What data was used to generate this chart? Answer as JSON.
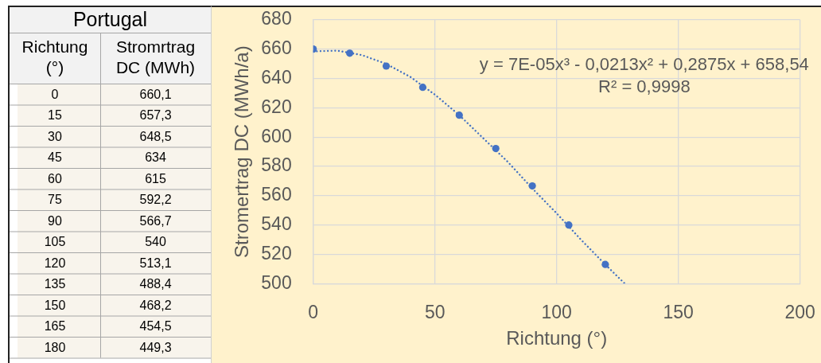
{
  "chart_data": [
    {
      "type": "heatmap",
      "title": "Portugal",
      "ylabel": "Richtung (°)",
      "categories": [
        "Stromrtrag DC (MWh)"
      ],
      "y_categories": [
        "0",
        "15",
        "30",
        "45",
        "60",
        "75",
        "90",
        "105",
        "120",
        "135",
        "150",
        "165",
        "180"
      ],
      "cells": [
        [
          660.1
        ],
        [
          657.3
        ],
        [
          648.5
        ],
        [
          634
        ],
        [
          615
        ],
        [
          592.2
        ],
        [
          566.7
        ],
        [
          540
        ],
        [
          513.1
        ],
        [
          488.4
        ],
        [
          468.2
        ],
        [
          454.5
        ],
        [
          449.3
        ]
      ],
      "cell_labels": [
        [
          "660,1"
        ],
        [
          "657,3"
        ],
        [
          "648,5"
        ],
        [
          "634"
        ],
        [
          "615"
        ],
        [
          "592,2"
        ],
        [
          "566,7"
        ],
        [
          "540"
        ],
        [
          "513,1"
        ],
        [
          "488,4"
        ],
        [
          "468,2"
        ],
        [
          "454,5"
        ],
        [
          "449,3"
        ]
      ]
    },
    {
      "type": "scatter",
      "xlabel": "Richtung (°)",
      "ylabel": "Stromertrag DC (MWh/a)",
      "xlim": [
        0,
        200
      ],
      "xticks": [
        0,
        50,
        100,
        150,
        200
      ],
      "ylim": [
        500,
        680
      ],
      "yticks": [
        500,
        520,
        540,
        560,
        580,
        600,
        620,
        640,
        660,
        680
      ],
      "grid": true,
      "annotations": [
        "y = 7E-05x³ - 0,0213x² + 0,2875x + 658,54",
        "R² = 0,9998"
      ],
      "series": [
        {
          "type": "scatter",
          "color": "#4472c4",
          "marker": "circle",
          "x": [
            0,
            15,
            30,
            45,
            60,
            75,
            90,
            105,
            120
          ],
          "values": [
            660.1,
            657.3,
            648.5,
            634,
            615,
            592.2,
            566.7,
            540,
            513.1
          ]
        },
        {
          "type": "line",
          "color": "#4472c4",
          "line_style": "dotted",
          "marker": "none",
          "x": [
            0,
            10,
            20,
            30,
            40,
            50,
            60,
            70,
            80,
            90,
            100,
            110,
            120,
            128
          ],
          "values": [
            658.5,
            659,
            656,
            650,
            641,
            629,
            615,
            599,
            583,
            565,
            548,
            530,
            513,
            500
          ]
        }
      ]
    }
  ]
}
